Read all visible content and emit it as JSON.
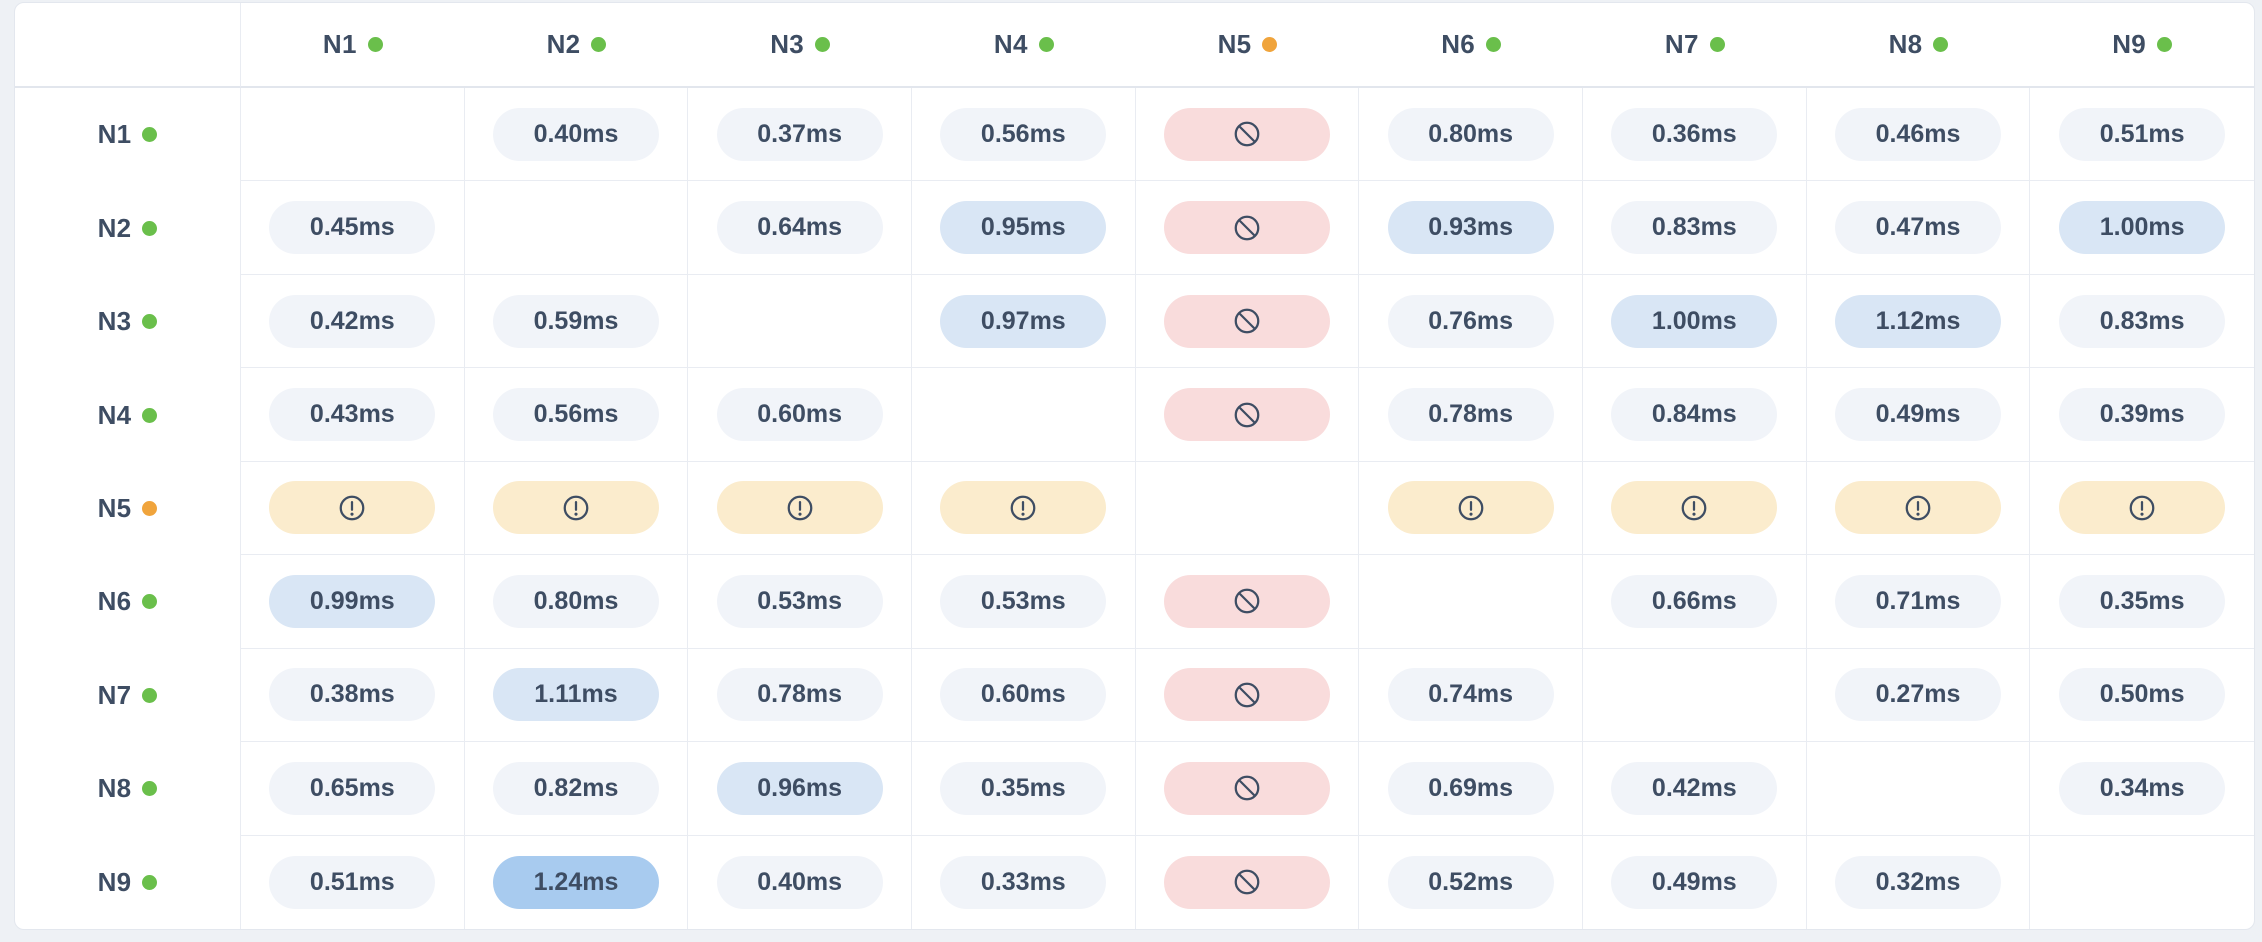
{
  "colors": {
    "page_bg": "#eef1f5",
    "card_bg": "#ffffff",
    "card_border": "#e3e7ee",
    "grid_line": "#e9ecf2",
    "header_line": "#e2e6ed",
    "text": "#3e4d63",
    "pill_normal_bg": "#f1f4f9",
    "pill_elevated_bg": "#d9e6f5",
    "pill_high_bg": "#a8cbef",
    "pill_blocked_bg": "#f9dcdc",
    "pill_warning_bg": "#fbeccd",
    "status_up": "#6abf4b",
    "status_degraded": "#f0a43c"
  },
  "matrix": {
    "unit": "ms",
    "nodes": [
      {
        "id": "N1",
        "status": "up"
      },
      {
        "id": "N2",
        "status": "up"
      },
      {
        "id": "N3",
        "status": "up"
      },
      {
        "id": "N4",
        "status": "up"
      },
      {
        "id": "N5",
        "status": "degraded"
      },
      {
        "id": "N6",
        "status": "up"
      },
      {
        "id": "N7",
        "status": "up"
      },
      {
        "id": "N8",
        "status": "up"
      },
      {
        "id": "N9",
        "status": "up"
      }
    ],
    "rows": [
      {
        "id": "N1",
        "status": "up",
        "cells": [
          {
            "state": "self"
          },
          {
            "state": "value",
            "label": "0.40ms",
            "level": "normal"
          },
          {
            "state": "value",
            "label": "0.37ms",
            "level": "normal"
          },
          {
            "state": "value",
            "label": "0.56ms",
            "level": "normal"
          },
          {
            "state": "blocked",
            "icon": "no-entry"
          },
          {
            "state": "value",
            "label": "0.80ms",
            "level": "normal"
          },
          {
            "state": "value",
            "label": "0.36ms",
            "level": "normal"
          },
          {
            "state": "value",
            "label": "0.46ms",
            "level": "normal"
          },
          {
            "state": "value",
            "label": "0.51ms",
            "level": "normal"
          }
        ]
      },
      {
        "id": "N2",
        "status": "up",
        "cells": [
          {
            "state": "value",
            "label": "0.45ms",
            "level": "normal"
          },
          {
            "state": "self"
          },
          {
            "state": "value",
            "label": "0.64ms",
            "level": "normal"
          },
          {
            "state": "value",
            "label": "0.95ms",
            "level": "elevated"
          },
          {
            "state": "blocked",
            "icon": "no-entry"
          },
          {
            "state": "value",
            "label": "0.93ms",
            "level": "elevated"
          },
          {
            "state": "value",
            "label": "0.83ms",
            "level": "normal"
          },
          {
            "state": "value",
            "label": "0.47ms",
            "level": "normal"
          },
          {
            "state": "value",
            "label": "1.00ms",
            "level": "elevated"
          }
        ]
      },
      {
        "id": "N3",
        "status": "up",
        "cells": [
          {
            "state": "value",
            "label": "0.42ms",
            "level": "normal"
          },
          {
            "state": "value",
            "label": "0.59ms",
            "level": "normal"
          },
          {
            "state": "self"
          },
          {
            "state": "value",
            "label": "0.97ms",
            "level": "elevated"
          },
          {
            "state": "blocked",
            "icon": "no-entry"
          },
          {
            "state": "value",
            "label": "0.76ms",
            "level": "normal"
          },
          {
            "state": "value",
            "label": "1.00ms",
            "level": "elevated"
          },
          {
            "state": "value",
            "label": "1.12ms",
            "level": "elevated"
          },
          {
            "state": "value",
            "label": "0.83ms",
            "level": "normal"
          }
        ]
      },
      {
        "id": "N4",
        "status": "up",
        "cells": [
          {
            "state": "value",
            "label": "0.43ms",
            "level": "normal"
          },
          {
            "state": "value",
            "label": "0.56ms",
            "level": "normal"
          },
          {
            "state": "value",
            "label": "0.60ms",
            "level": "normal"
          },
          {
            "state": "self"
          },
          {
            "state": "blocked",
            "icon": "no-entry"
          },
          {
            "state": "value",
            "label": "0.78ms",
            "level": "normal"
          },
          {
            "state": "value",
            "label": "0.84ms",
            "level": "normal"
          },
          {
            "state": "value",
            "label": "0.49ms",
            "level": "normal"
          },
          {
            "state": "value",
            "label": "0.39ms",
            "level": "normal"
          }
        ]
      },
      {
        "id": "N5",
        "status": "degraded",
        "cells": [
          {
            "state": "warning",
            "icon": "alert-circle"
          },
          {
            "state": "warning",
            "icon": "alert-circle"
          },
          {
            "state": "warning",
            "icon": "alert-circle"
          },
          {
            "state": "warning",
            "icon": "alert-circle"
          },
          {
            "state": "self"
          },
          {
            "state": "warning",
            "icon": "alert-circle"
          },
          {
            "state": "warning",
            "icon": "alert-circle"
          },
          {
            "state": "warning",
            "icon": "alert-circle"
          },
          {
            "state": "warning",
            "icon": "alert-circle"
          }
        ]
      },
      {
        "id": "N6",
        "status": "up",
        "cells": [
          {
            "state": "value",
            "label": "0.99ms",
            "level": "elevated"
          },
          {
            "state": "value",
            "label": "0.80ms",
            "level": "normal"
          },
          {
            "state": "value",
            "label": "0.53ms",
            "level": "normal"
          },
          {
            "state": "value",
            "label": "0.53ms",
            "level": "normal"
          },
          {
            "state": "blocked",
            "icon": "no-entry"
          },
          {
            "state": "self"
          },
          {
            "state": "value",
            "label": "0.66ms",
            "level": "normal"
          },
          {
            "state": "value",
            "label": "0.71ms",
            "level": "normal"
          },
          {
            "state": "value",
            "label": "0.35ms",
            "level": "normal"
          }
        ]
      },
      {
        "id": "N7",
        "status": "up",
        "cells": [
          {
            "state": "value",
            "label": "0.38ms",
            "level": "normal"
          },
          {
            "state": "value",
            "label": "1.11ms",
            "level": "elevated"
          },
          {
            "state": "value",
            "label": "0.78ms",
            "level": "normal"
          },
          {
            "state": "value",
            "label": "0.60ms",
            "level": "normal"
          },
          {
            "state": "blocked",
            "icon": "no-entry"
          },
          {
            "state": "value",
            "label": "0.74ms",
            "level": "normal"
          },
          {
            "state": "self"
          },
          {
            "state": "value",
            "label": "0.27ms",
            "level": "normal"
          },
          {
            "state": "value",
            "label": "0.50ms",
            "level": "normal"
          }
        ]
      },
      {
        "id": "N8",
        "status": "up",
        "cells": [
          {
            "state": "value",
            "label": "0.65ms",
            "level": "normal"
          },
          {
            "state": "value",
            "label": "0.82ms",
            "level": "normal"
          },
          {
            "state": "value",
            "label": "0.96ms",
            "level": "elevated"
          },
          {
            "state": "value",
            "label": "0.35ms",
            "level": "normal"
          },
          {
            "state": "blocked",
            "icon": "no-entry"
          },
          {
            "state": "value",
            "label": "0.69ms",
            "level": "normal"
          },
          {
            "state": "value",
            "label": "0.42ms",
            "level": "normal"
          },
          {
            "state": "self"
          },
          {
            "state": "value",
            "label": "0.34ms",
            "level": "normal"
          }
        ]
      },
      {
        "id": "N9",
        "status": "up",
        "cells": [
          {
            "state": "value",
            "label": "0.51ms",
            "level": "normal"
          },
          {
            "state": "value",
            "label": "1.24ms",
            "level": "high"
          },
          {
            "state": "value",
            "label": "0.40ms",
            "level": "normal"
          },
          {
            "state": "value",
            "label": "0.33ms",
            "level": "normal"
          },
          {
            "state": "blocked",
            "icon": "no-entry"
          },
          {
            "state": "value",
            "label": "0.52ms",
            "level": "normal"
          },
          {
            "state": "value",
            "label": "0.49ms",
            "level": "normal"
          },
          {
            "state": "value",
            "label": "0.32ms",
            "level": "normal"
          },
          {
            "state": "self"
          }
        ]
      }
    ]
  }
}
